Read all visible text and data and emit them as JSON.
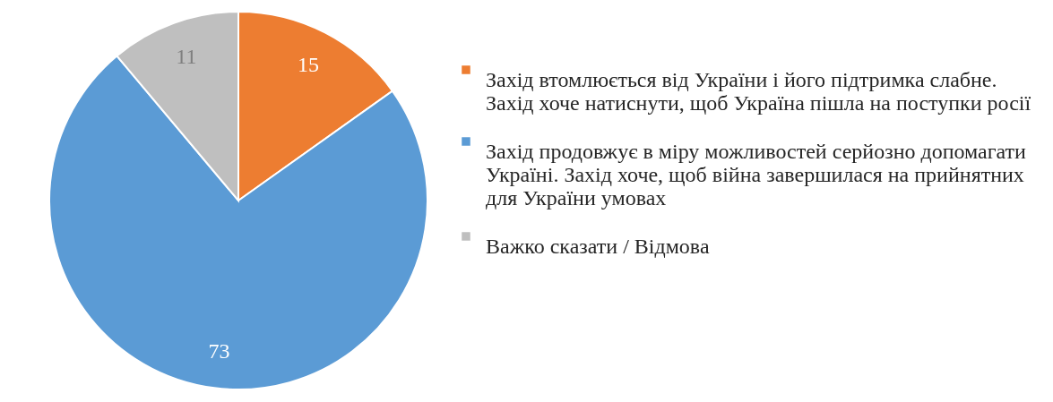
{
  "chart_data": {
    "type": "pie",
    "categories": [
      "Захід втомлюється від України і його підтримка слабне. Захід хоче натиснути, щоб Україна пішла на поступки росії",
      "Захід продовжує в міру можливостей серйозно допомагати Україні. Захід хоче, щоб війна завершилася на прийнятних для України умовах",
      "Важко сказати / Відмова"
    ],
    "values": [
      15,
      73,
      11
    ],
    "colors": [
      "#ed7d31",
      "#5b9bd5",
      "#bfbfbf"
    ],
    "data_labels": true,
    "legend": "right"
  }
}
